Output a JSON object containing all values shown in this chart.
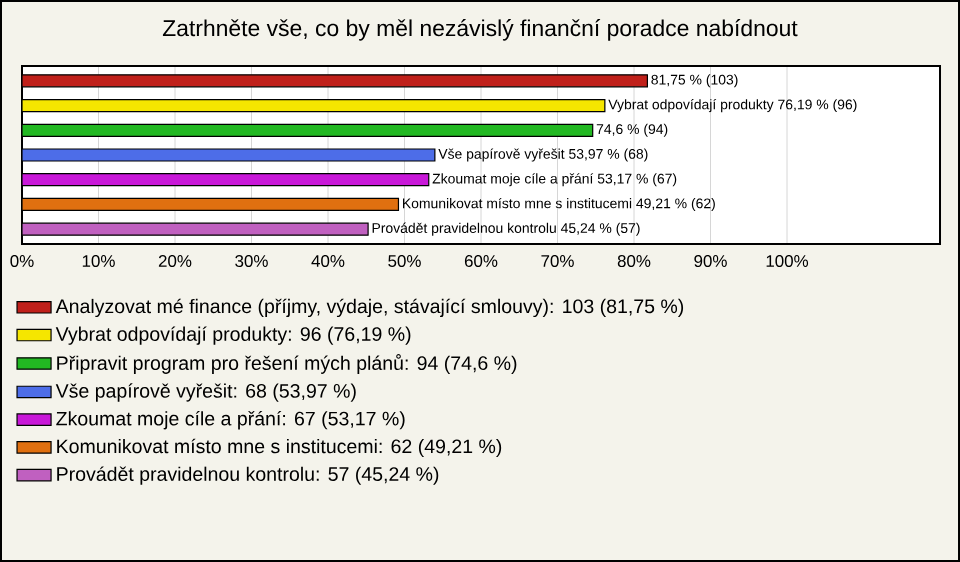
{
  "chart_data": {
    "type": "bar",
    "orientation": "horizontal",
    "title": "Zatrhněte vše, co by měl nezávislý finanční poradce nabídnout",
    "categories": [
      null,
      null,
      null,
      null,
      null,
      null,
      null
    ],
    "series": [
      {
        "name": "Analyzovat mé finance (příjmy, výdaje, stávající smlouvy): 103 (81,75 %)",
        "color": "#c0201a",
        "values": [
          81.75,
          null,
          null,
          null,
          null,
          null,
          null
        ],
        "value_labels": [
          "81,75 % (103)",
          null,
          null,
          null,
          null,
          null,
          null
        ]
      },
      {
        "name": "Vybrat odpovídají produkty: 96 (76,19 %)",
        "color": "#f5e600",
        "values": [
          null,
          76.19,
          null,
          null,
          null,
          null,
          null
        ],
        "value_labels": [
          null,
          "Vybrat odpovídají produkty 76,19 % (96)",
          null,
          null,
          null,
          null,
          null
        ]
      },
      {
        "name": "Připravit program pro řešení mých plánů: 94 (74,6 %)",
        "color": "#22b822",
        "values": [
          null,
          null,
          74.6,
          null,
          null,
          null,
          null
        ],
        "value_labels": [
          null,
          null,
          "74,6 % (94)",
          null,
          null,
          null,
          null
        ]
      },
      {
        "name": "Vše papírově vyřešit: 68 (53,97 %)",
        "color": "#4d6de8",
        "values": [
          null,
          null,
          null,
          53.97,
          null,
          null,
          null
        ],
        "value_labels": [
          null,
          null,
          null,
          "Vše papírově vyřešit 53,97 % (68)",
          null,
          null,
          null
        ]
      },
      {
        "name": "Zkoumat moje cíle a přání: 67 (53,17 %)",
        "color": "#c818d8",
        "values": [
          null,
          null,
          null,
          null,
          53.17,
          null,
          null
        ],
        "value_labels": [
          null,
          null,
          null,
          null,
          "Zkoumat moje cíle a přání 53,17 % (67)",
          null,
          null
        ]
      },
      {
        "name": "Komunikovat místo mne s institucemi: 62 (49,21 %)",
        "color": "#e07010",
        "values": [
          null,
          null,
          null,
          null,
          null,
          49.21,
          null
        ],
        "value_labels": [
          null,
          null,
          null,
          null,
          null,
          "Komunikovat místo mne s institucemi 49,21 % (62)",
          null
        ]
      },
      {
        "name": "Provádět pravidelnou kontrolu: 57 (45,24 %)",
        "color": "#c060c0",
        "values": [
          null,
          null,
          null,
          null,
          null,
          null,
          45.24
        ],
        "value_labels": [
          null,
          null,
          null,
          null,
          null,
          null,
          "Provádět pravidelnou kontrolu 45,24 % (57)"
        ]
      }
    ],
    "xlim": [
      0,
      120
    ],
    "xticks": [
      {
        "value": 0,
        "label": "0%"
      },
      {
        "value": 10,
        "label": "10%"
      },
      {
        "value": 20,
        "label": "20%"
      },
      {
        "value": 30,
        "label": "30%"
      },
      {
        "value": 40,
        "label": "40%"
      },
      {
        "value": 50,
        "label": "50%"
      },
      {
        "value": 60,
        "label": "60%"
      },
      {
        "value": 70,
        "label": "70%"
      },
      {
        "value": 80,
        "label": "80%"
      },
      {
        "value": 90,
        "label": "90%"
      },
      {
        "value": 100,
        "label": "100%"
      }
    ],
    "grid": "x",
    "legend": "bottom"
  }
}
